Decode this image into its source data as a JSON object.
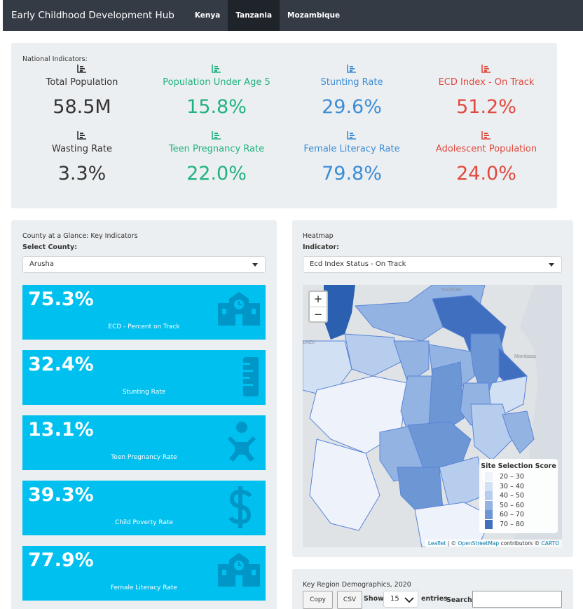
{
  "navbar": {
    "brand": "Early Childhood Development Hub",
    "tabs": [
      {
        "label": "Kenya",
        "active": false
      },
      {
        "label": "Tanzania",
        "active": true
      },
      {
        "label": "Mozambique",
        "active": false
      }
    ]
  },
  "national": {
    "title": "National Indicators:",
    "items": [
      {
        "label": "Total Population",
        "value": "58.5M",
        "color": "#333333",
        "icon": "bar-chart-icon"
      },
      {
        "label": "Population Under Age 5",
        "value": "15.8%",
        "color": "#20b27f",
        "icon": "bar-chart-icon"
      },
      {
        "label": "Stunting Rate",
        "value": "29.6%",
        "color": "#3c8dd6",
        "icon": "bar-chart-icon"
      },
      {
        "label": "ECD Index - On Track",
        "value": "51.2%",
        "color": "#e0493f",
        "icon": "bar-chart-icon"
      },
      {
        "label": "Wasting Rate",
        "value": "3.3%",
        "color": "#333333",
        "icon": "bar-chart-icon"
      },
      {
        "label": "Teen Pregnancy Rate",
        "value": "22.0%",
        "color": "#20b27f",
        "icon": "bar-chart-icon"
      },
      {
        "label": "Female Literacy Rate",
        "value": "79.8%",
        "color": "#3c8dd6",
        "icon": "bar-chart-icon"
      },
      {
        "label": "Adolescent Population",
        "value": "24.0%",
        "color": "#e0493f",
        "icon": "bar-chart-icon"
      }
    ]
  },
  "county": {
    "title": "County at a Glance: Key Indicators",
    "select_label": "Select County:",
    "selected": "Arusha",
    "boxes": [
      {
        "value": "75.3%",
        "caption": "ECD - Percent on Track",
        "icon": "school-icon"
      },
      {
        "value": "32.4%",
        "caption": "Stunting Rate",
        "icon": "ruler-icon"
      },
      {
        "value": "13.1%",
        "caption": "Teen Pregnancy Rate",
        "icon": "baby-icon"
      },
      {
        "value": "39.3%",
        "caption": "Child Poverty Rate",
        "icon": "dollar-icon"
      },
      {
        "value": "77.9%",
        "caption": "Female Literacy Rate",
        "icon": "school-icon"
      }
    ]
  },
  "heatmap": {
    "title": "Heatmap",
    "indicator_label": "Indicator:",
    "selected": "Ecd Index Status - On Track",
    "zoom_in": "+",
    "zoom_out": "−",
    "place_labels": [
      "NAIROBI",
      "Mombasa",
      "UNDI"
    ],
    "legend": {
      "title": "Site Selection Score",
      "items": [
        {
          "range": "20 – 30",
          "color": "#eef2fb"
        },
        {
          "range": "30 – 40",
          "color": "#d2e0f4"
        },
        {
          "range": "40 – 50",
          "color": "#b6cdee"
        },
        {
          "range": "50 – 60",
          "color": "#93b4e3"
        },
        {
          "range": "60 – 70",
          "color": "#6c97d4"
        },
        {
          "range": "70 – 80",
          "color": "#3f6fbe"
        }
      ]
    },
    "attribution": {
      "leaflet": "Leaflet",
      "sep1": " | © ",
      "osm": "OpenStreetMap",
      "mid": " contributors © ",
      "carto": "CARTO"
    }
  },
  "demographics": {
    "title": "Key Region Demographics, 2020",
    "copy": "Copy",
    "csv": "CSV",
    "show": "Show",
    "entries_value": "15",
    "entries": "entries",
    "search": "Search:"
  }
}
